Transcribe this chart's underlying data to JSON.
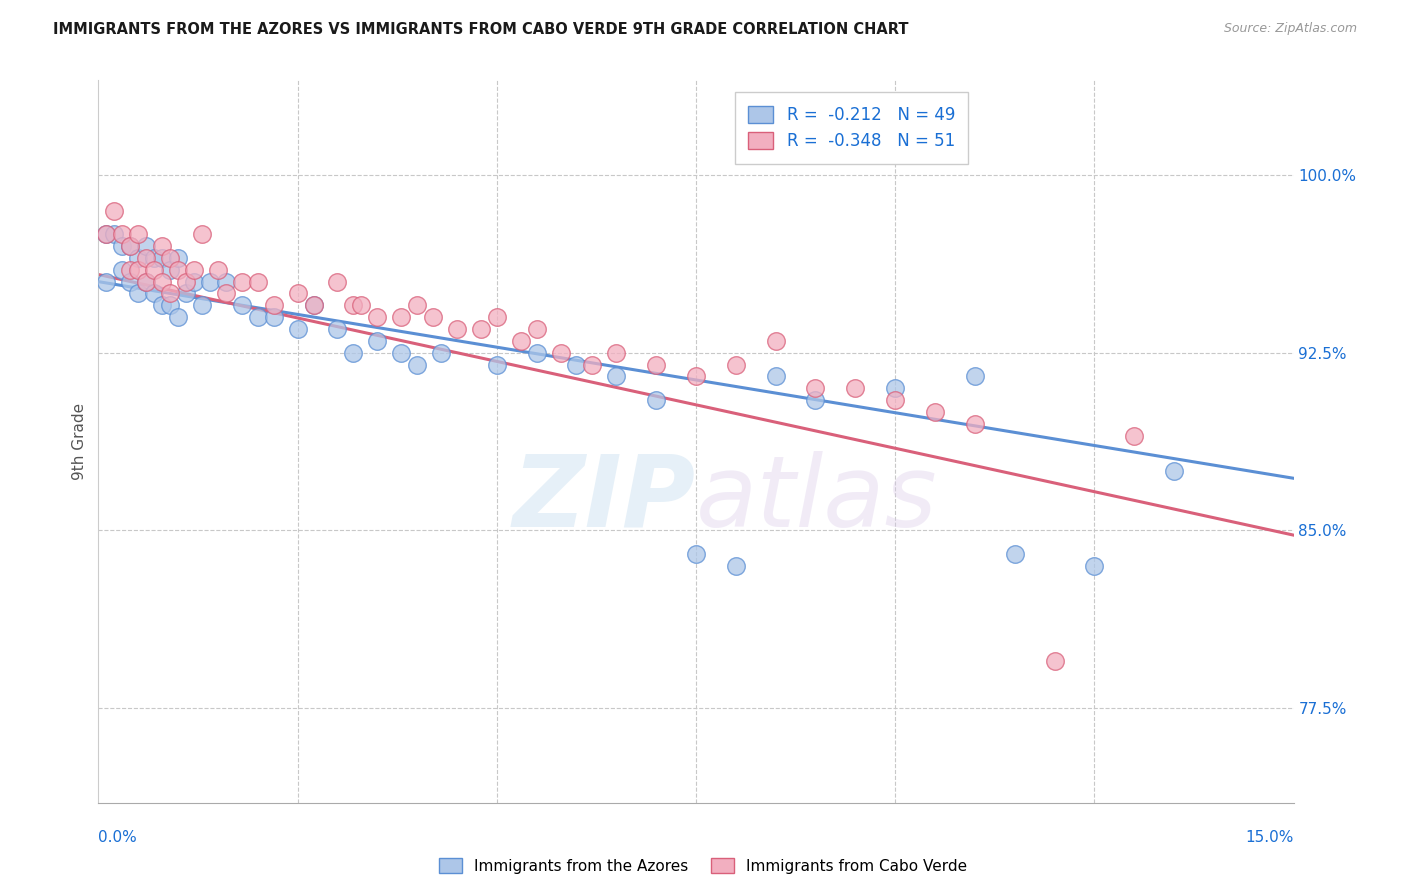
{
  "title": "IMMIGRANTS FROM THE AZORES VS IMMIGRANTS FROM CABO VERDE 9TH GRADE CORRELATION CHART",
  "source": "Source: ZipAtlas.com",
  "ylabel": "9th Grade",
  "yaxis_values": [
    0.775,
    0.85,
    0.925,
    1.0
  ],
  "xmin": 0.0,
  "xmax": 0.15,
  "ymin": 0.735,
  "ymax": 1.04,
  "legend_R_azores": "-0.212",
  "legend_N_azores": "49",
  "legend_R_cabo": "-0.348",
  "legend_N_cabo": "51",
  "color_azores": "#adc6e8",
  "color_cabo": "#f2afc0",
  "line_color_azores": "#5b8fd4",
  "line_color_cabo": "#d9607a",
  "watermark_zip": "ZIP",
  "watermark_atlas": "atlas",
  "title_color": "#1a1a1a",
  "axis_label_color": "#1a6fd4",
  "azores_x": [
    0.001,
    0.001,
    0.002,
    0.003,
    0.003,
    0.004,
    0.004,
    0.005,
    0.005,
    0.006,
    0.006,
    0.007,
    0.007,
    0.008,
    0.008,
    0.009,
    0.009,
    0.01,
    0.01,
    0.011,
    0.012,
    0.013,
    0.014,
    0.016,
    0.018,
    0.02,
    0.022,
    0.025,
    0.027,
    0.03,
    0.032,
    0.035,
    0.038,
    0.04,
    0.043,
    0.05,
    0.055,
    0.06,
    0.065,
    0.07,
    0.075,
    0.08,
    0.085,
    0.09,
    0.1,
    0.11,
    0.115,
    0.125,
    0.135
  ],
  "azores_y": [
    0.975,
    0.955,
    0.975,
    0.97,
    0.96,
    0.97,
    0.955,
    0.965,
    0.95,
    0.97,
    0.955,
    0.965,
    0.95,
    0.965,
    0.945,
    0.96,
    0.945,
    0.965,
    0.94,
    0.95,
    0.955,
    0.945,
    0.955,
    0.955,
    0.945,
    0.94,
    0.94,
    0.935,
    0.945,
    0.935,
    0.925,
    0.93,
    0.925,
    0.92,
    0.925,
    0.92,
    0.925,
    0.92,
    0.915,
    0.905,
    0.84,
    0.835,
    0.915,
    0.905,
    0.91,
    0.915,
    0.84,
    0.835,
    0.875
  ],
  "cabo_x": [
    0.001,
    0.002,
    0.003,
    0.004,
    0.004,
    0.005,
    0.005,
    0.006,
    0.006,
    0.007,
    0.008,
    0.008,
    0.009,
    0.009,
    0.01,
    0.011,
    0.012,
    0.013,
    0.015,
    0.016,
    0.018,
    0.02,
    0.022,
    0.025,
    0.027,
    0.03,
    0.032,
    0.033,
    0.035,
    0.038,
    0.04,
    0.042,
    0.045,
    0.048,
    0.05,
    0.053,
    0.055,
    0.058,
    0.062,
    0.065,
    0.07,
    0.075,
    0.08,
    0.085,
    0.09,
    0.095,
    0.1,
    0.105,
    0.11,
    0.12,
    0.13
  ],
  "cabo_y": [
    0.975,
    0.985,
    0.975,
    0.97,
    0.96,
    0.96,
    0.975,
    0.965,
    0.955,
    0.96,
    0.97,
    0.955,
    0.965,
    0.95,
    0.96,
    0.955,
    0.96,
    0.975,
    0.96,
    0.95,
    0.955,
    0.955,
    0.945,
    0.95,
    0.945,
    0.955,
    0.945,
    0.945,
    0.94,
    0.94,
    0.945,
    0.94,
    0.935,
    0.935,
    0.94,
    0.93,
    0.935,
    0.925,
    0.92,
    0.925,
    0.92,
    0.915,
    0.92,
    0.93,
    0.91,
    0.91,
    0.905,
    0.9,
    0.895,
    0.795,
    0.89
  ]
}
